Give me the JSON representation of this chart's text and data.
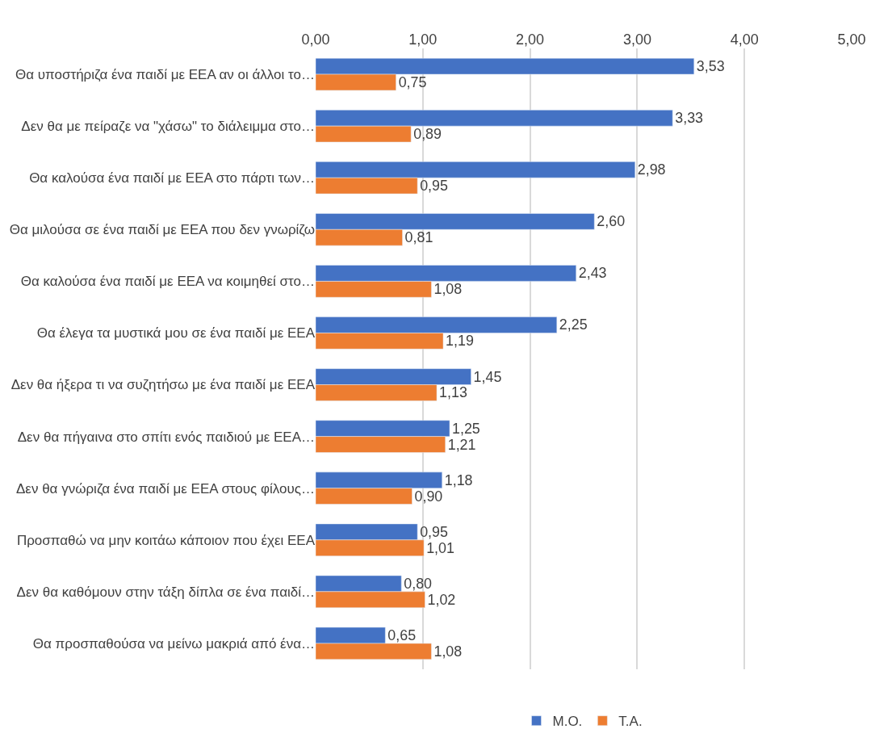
{
  "chart_data": {
    "type": "bar",
    "orientation": "horizontal",
    "categories": [
      "Θα υποστήριζα ένα παιδί με ΕΕΑ αν οι άλλοι το…",
      "Δεν θα με πείραζε να \"χάσω\" το διάλειμμα στο…",
      "Θα καλούσα ένα παιδί με ΕΕΑ στο πάρτι των…",
      "Θα μιλούσα σε ένα παιδί με ΕΕΑ που δεν γνωρίζω",
      "Θα καλούσα ένα παιδί με ΕΕΑ να κοιμηθεί στο…",
      "Θα έλεγα τα μυστικά μου σε ένα παιδί με ΕΕΑ",
      "Δεν θα ήξερα τι να συζητήσω με ένα παιδί με ΕΕΑ",
      "Δεν θα πήγαινα στο σπίτι ενός παιδιού με ΕΕΑ…",
      "Δεν θα γνώριζα ένα παιδί με ΕΕΑ στους φίλους…",
      "Προσπαθώ να μην κοιτάω κάποιον που έχει ΕΕΑ",
      "Δεν θα καθόμουν στην τάξη δίπλα σε ένα παιδί…",
      "Θα προσπαθούσα να μείνω μακριά από ένα…"
    ],
    "series": [
      {
        "name": "Μ.Ο.",
        "color": "#4472c4",
        "values": [
          3.53,
          3.33,
          2.98,
          2.6,
          2.43,
          2.25,
          1.45,
          1.25,
          1.18,
          0.95,
          0.8,
          0.65
        ],
        "value_labels": [
          "3,53",
          "3,33",
          "2,98",
          "2,60",
          "2,43",
          "2,25",
          "1,45",
          "1,25",
          "1,18",
          "0,95",
          "0,80",
          "0,65"
        ]
      },
      {
        "name": "Τ.Α.",
        "color": "#ed7d31",
        "values": [
          0.75,
          0.89,
          0.95,
          0.81,
          1.08,
          1.19,
          1.13,
          1.21,
          0.9,
          1.01,
          1.02,
          1.08
        ],
        "value_labels": [
          "0,75",
          "0,89",
          "0,95",
          "0,81",
          "1,08",
          "1,19",
          "1,13",
          "1,21",
          "0,90",
          "1,01",
          "1,02",
          "1,08"
        ]
      }
    ],
    "xlim": [
      0,
      5
    ],
    "xticks": [
      {
        "value": 0,
        "label": "0,00"
      },
      {
        "value": 1,
        "label": "1,00"
      },
      {
        "value": 2,
        "label": "2,00"
      },
      {
        "value": 3,
        "label": "3,00"
      },
      {
        "value": 4,
        "label": "4,00"
      },
      {
        "value": 5,
        "label": "5,00"
      }
    ],
    "grid": "x",
    "legend": "bottom"
  }
}
